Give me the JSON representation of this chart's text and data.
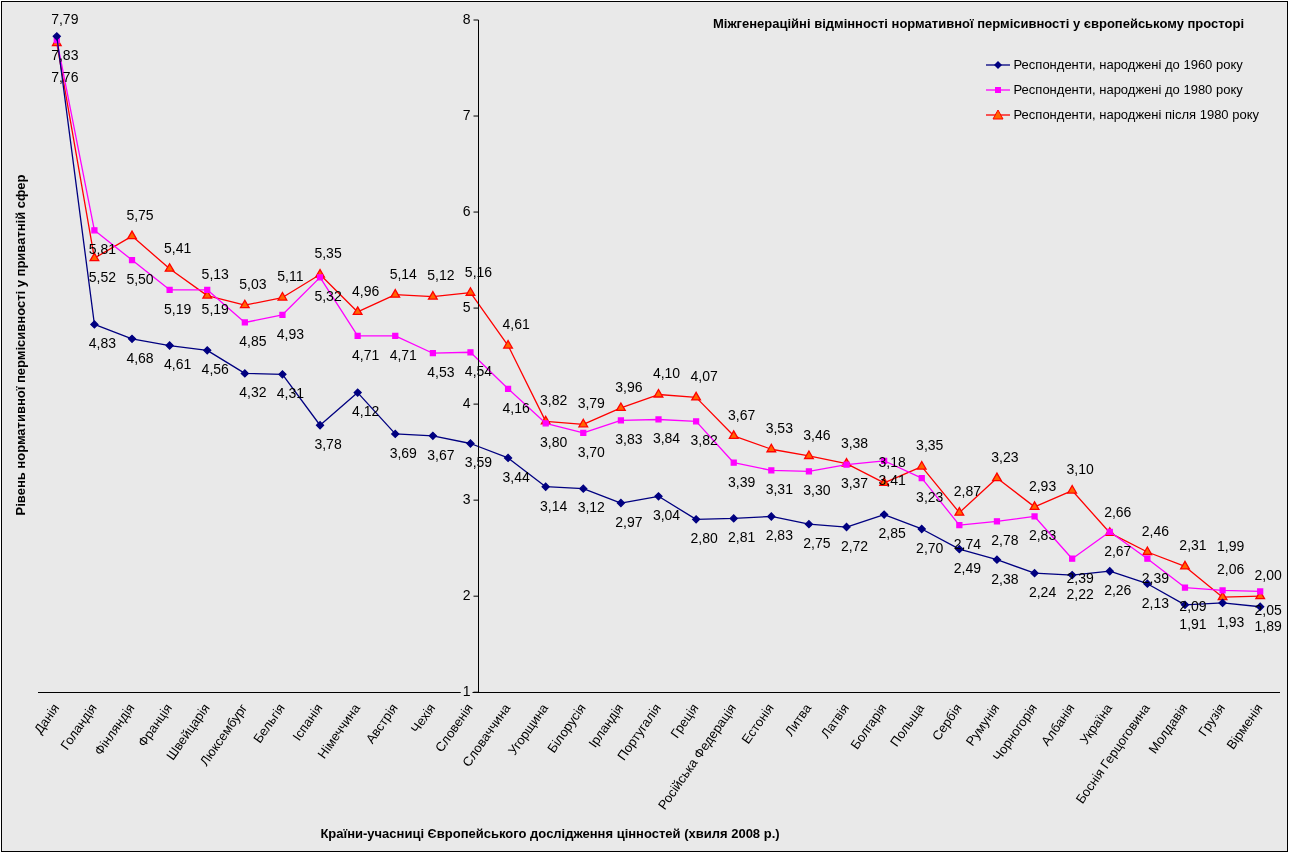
{
  "chart_data": {
    "type": "line",
    "title": "Міжгенераційні відмінності нормативної пермісивності у європейському просторі",
    "xlabel": "Країни-учасниці Європейського дослідження цінностей (хвиля 2008 р.)",
    "ylabel": "Рівень нормативної пермісивності у приватній сфер",
    "categories": [
      "Данія",
      "Голандія",
      "Фінляндія",
      "Франція",
      "Швейцарія",
      "Люксембург",
      "Бельгія",
      "Іспанія",
      "Німеччина",
      "Австрія",
      "Чехія",
      "Словенія",
      "Словаччина",
      "Угорщина",
      "Білорусія",
      "Ірландія",
      "Португалія",
      "Греція",
      "Російська Федерація",
      "Естонія",
      "Литва",
      "Латвія",
      "Болгарія",
      "Польща",
      "Сербія",
      "Румунія",
      "Чорногорія",
      "Албанія",
      "Україна",
      "Боснія Герцоговина",
      "Молдавія",
      "Грузія",
      "Вірменія"
    ],
    "series": [
      {
        "name": "Респонденти, народжені до 1960 року",
        "color": "#000080",
        "marker": "diamond",
        "values": [
          7.83,
          4.83,
          4.68,
          4.61,
          4.56,
          4.32,
          4.31,
          3.78,
          4.12,
          3.69,
          3.67,
          3.59,
          3.44,
          3.14,
          3.12,
          2.97,
          3.04,
          2.8,
          2.81,
          2.83,
          2.75,
          2.72,
          2.85,
          2.7,
          2.49,
          2.38,
          2.24,
          2.22,
          2.26,
          2.13,
          1.91,
          1.93,
          1.89
        ],
        "value_labels": [
          "7,83",
          "4,83",
          "4,68",
          "4,61",
          "4,56",
          "4,32",
          "4,31",
          "3,78",
          "4,12",
          "3,69",
          "3,67",
          "3,59",
          "3,44",
          "3,14",
          "3,12",
          "2,97",
          "3,04",
          "2,80",
          "2,81",
          "2,83",
          "2,75",
          "2,72",
          "2,85",
          "2,70",
          "2,49",
          "2,38",
          "2,24",
          "2,22",
          "2,26",
          "2,13",
          "1,91",
          "1,93",
          "1,89"
        ]
      },
      {
        "name": "Респонденти, народжені до 1980 року",
        "color": "#ff00ff",
        "marker": "square",
        "values": [
          7.79,
          5.81,
          5.5,
          5.19,
          5.19,
          4.85,
          4.93,
          5.32,
          4.71,
          4.71,
          4.53,
          4.54,
          4.16,
          3.8,
          3.7,
          3.83,
          3.84,
          3.82,
          3.39,
          3.31,
          3.3,
          3.37,
          3.41,
          3.23,
          2.74,
          2.78,
          2.83,
          2.39,
          2.67,
          2.39,
          2.09,
          2.06,
          2.05
        ],
        "value_labels": [
          "7,79",
          "5,81",
          "5,50",
          "5,19",
          "5,19",
          "4,85",
          "4,93",
          "5,32",
          "4,71",
          "4,71",
          "4,53",
          "4,54",
          "4,16",
          "3,80",
          "3,70",
          "3,83",
          "3,84",
          "3,82",
          "3,39",
          "3,31",
          "3,30",
          "3,37",
          "3,41",
          "3,23",
          "2,74",
          "2,78",
          "2,83",
          "2,39",
          "2,67",
          "2,39",
          "2,09",
          "2,06",
          "2,05"
        ]
      },
      {
        "name": "Респонденти, народжені після 1980 року",
        "color": "#ff0000",
        "marker": "triangle",
        "values": [
          7.76,
          5.52,
          5.75,
          5.41,
          5.13,
          5.03,
          5.11,
          5.35,
          4.96,
          5.14,
          5.12,
          5.16,
          4.61,
          3.82,
          3.79,
          3.96,
          4.1,
          4.07,
          3.67,
          3.53,
          3.46,
          3.38,
          3.18,
          3.35,
          2.87,
          3.23,
          2.93,
          3.1,
          2.66,
          2.46,
          2.31,
          1.99,
          2.0
        ],
        "value_labels": [
          "7,76",
          "5,52",
          "5,75",
          "5,41",
          "5,13",
          "5,03",
          "5,11",
          "5,35",
          "4,96",
          "5,14",
          "5,12",
          "5,16",
          "4,61",
          "3,82",
          "3,79",
          "3,96",
          "4,10",
          "4,07",
          "3,67",
          "3,53",
          "3,46",
          "3,38",
          "3,18",
          "3,35",
          "2,87",
          "3,23",
          "2,93",
          "3,10",
          "2,66",
          "2,46",
          "2,31",
          "1,99",
          "2,00"
        ]
      }
    ],
    "ylim": [
      1,
      8
    ],
    "yticks": [
      1,
      2,
      3,
      4,
      5,
      6,
      7,
      8
    ],
    "grid": false,
    "legend": "top right",
    "line_style": "solid"
  }
}
